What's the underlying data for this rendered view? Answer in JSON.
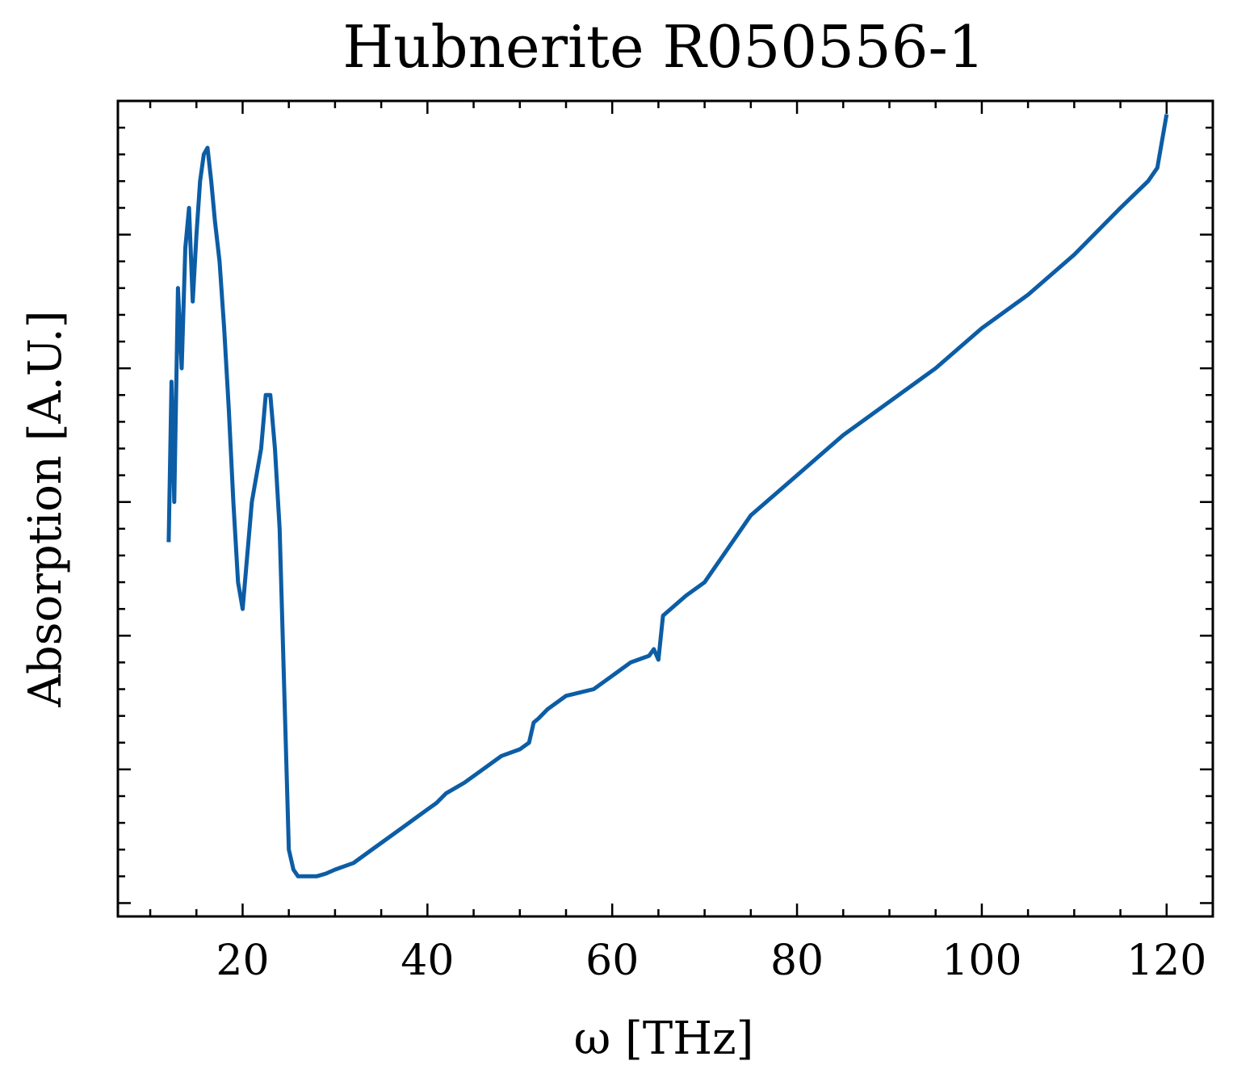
{
  "chart_data": {
    "type": "line",
    "title": "Hubnerite R050556-1",
    "xlabel": "ω [THz]",
    "ylabel": "Absorption [A.U.]",
    "xlim": [
      6.5,
      125
    ],
    "ylim": [
      -0.1,
      6.0
    ],
    "x_ticks": [
      20,
      40,
      60,
      80,
      100,
      120
    ],
    "x_tick_labels": [
      "20",
      "40",
      "60",
      "80",
      "100",
      "120"
    ],
    "y_ticks": [
      0,
      1,
      2,
      3,
      4,
      5
    ],
    "y_tick_labels_visible": false,
    "grid": false,
    "legend": "none",
    "line_color": "#0C5DA5",
    "series": [
      {
        "x": [
          12.0,
          12.3,
          12.6,
          13.0,
          13.4,
          13.8,
          14.2,
          14.6,
          15.0,
          15.4,
          15.8,
          16.2,
          16.6,
          17.0,
          17.5,
          18.0,
          18.5,
          19.0,
          19.5,
          20.0,
          21.0,
          22.0,
          22.5,
          23.0,
          23.5,
          24.0,
          24.5,
          25.0,
          25.5,
          26.0,
          26.5,
          27.0,
          27.5,
          28.0,
          29.0,
          30.0,
          32.0,
          34.0,
          36.0,
          38.0,
          40.0,
          41.0,
          42.0,
          44.0,
          46.0,
          48.0,
          50.0,
          51.0,
          51.5,
          52.0,
          53.0,
          55.0,
          58.0,
          60.0,
          62.0,
          64.0,
          64.5,
          65.0,
          65.5,
          68.0,
          70.0,
          75.0,
          80.0,
          85.0,
          90.0,
          95.0,
          100.0,
          105.0,
          110.0,
          115.0,
          118.0,
          119.0,
          120.0
        ],
        "y": [
          2.7,
          3.9,
          3.0,
          4.6,
          4.0,
          4.9,
          5.2,
          4.5,
          5.0,
          5.4,
          5.6,
          5.65,
          5.4,
          5.1,
          4.8,
          4.3,
          3.7,
          3.0,
          2.4,
          2.2,
          3.0,
          3.4,
          3.8,
          3.8,
          3.4,
          2.8,
          1.6,
          0.4,
          0.25,
          0.2,
          0.2,
          0.2,
          0.2,
          0.2,
          0.22,
          0.25,
          0.3,
          0.4,
          0.5,
          0.6,
          0.7,
          0.75,
          0.82,
          0.9,
          1.0,
          1.1,
          1.15,
          1.2,
          1.35,
          1.38,
          1.45,
          1.55,
          1.6,
          1.7,
          1.8,
          1.85,
          1.9,
          1.82,
          2.15,
          2.3,
          2.4,
          2.9,
          3.2,
          3.5,
          3.75,
          4.0,
          4.3,
          4.55,
          4.85,
          5.2,
          5.4,
          5.5,
          5.9
        ]
      }
    ]
  }
}
